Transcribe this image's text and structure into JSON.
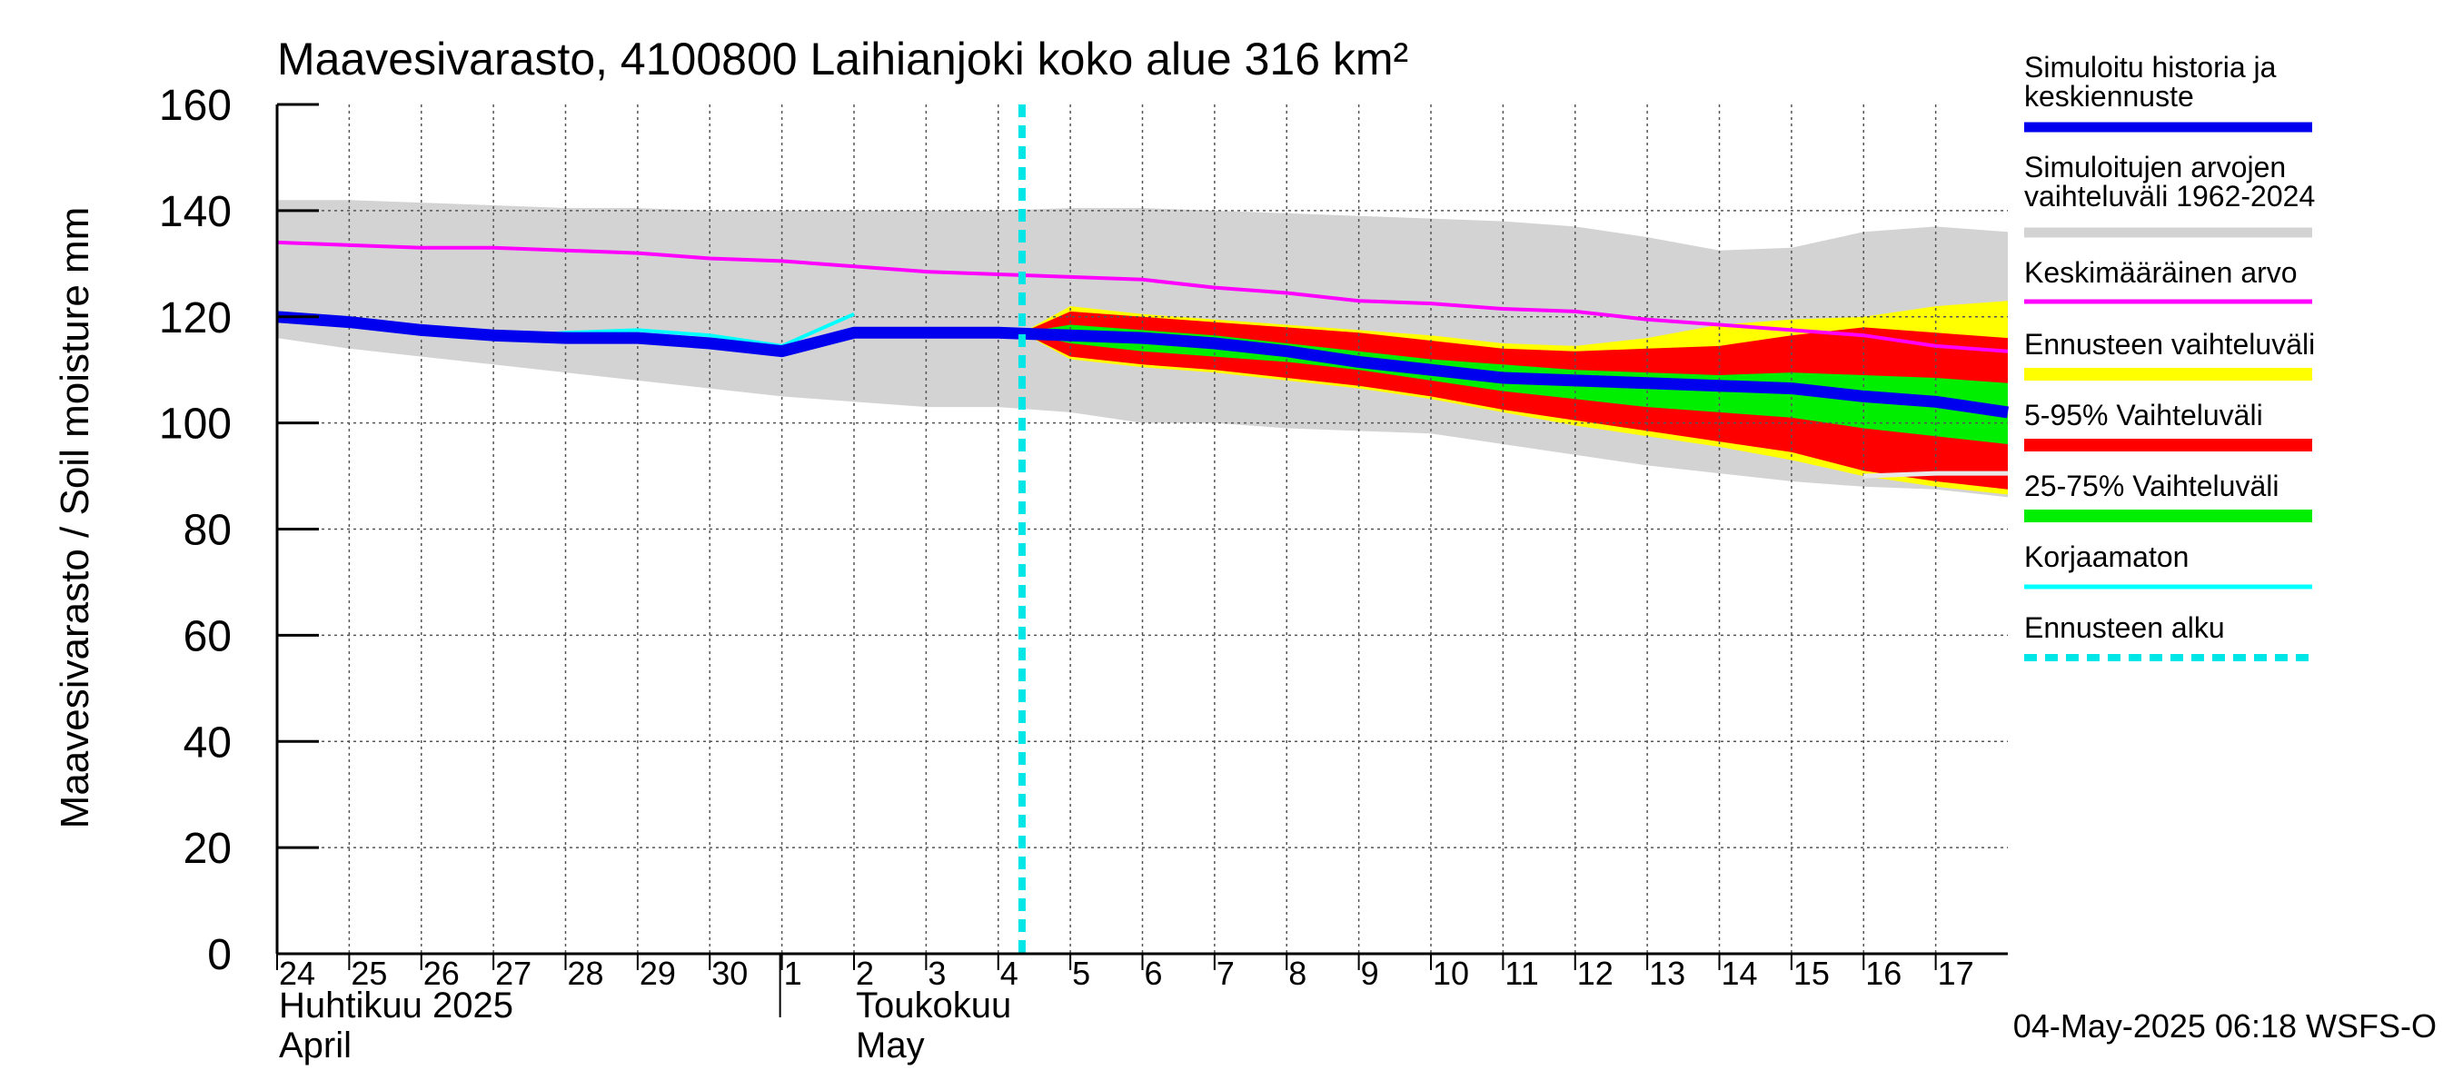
{
  "chart_data": {
    "type": "area",
    "title": "Maavesivarasto, 4100800 Laihianjoki koko alue 316 km²",
    "ylabel": "Maavesivarasto / Soil moisture   mm",
    "ylim": [
      0,
      160
    ],
    "yticks": [
      0,
      20,
      40,
      60,
      80,
      100,
      120,
      140,
      160
    ],
    "xlim": [
      0,
      24
    ],
    "grid": true,
    "forecast_start": 10.33,
    "x_tick_labels": [
      "24",
      "25",
      "26",
      "27",
      "28",
      "29",
      "30",
      "1",
      "2",
      "3",
      "4",
      "5",
      "6",
      "7",
      "8",
      "9",
      "10",
      "11",
      "12",
      "13",
      "14",
      "15",
      "16",
      "17"
    ],
    "month_labels": [
      {
        "x": 0,
        "line1": "Huhtikuu  2025",
        "line2": "April"
      },
      {
        "x": 8,
        "line1": "Toukokuu",
        "line2": "May"
      }
    ],
    "month_separator_x": 7.0,
    "timestamp": "04-May-2025 06:18 WSFS-O",
    "colors": {
      "sim_range": "#d3d3d3",
      "forecast_range": "#ffff00",
      "p5_95": "#ff0000",
      "p25_75": "#00ee00",
      "median": "#0000ee",
      "mean": "#ff00ff",
      "uncorrected": "#00ffff",
      "forecast_start": "#00e5e5",
      "uncorrected_tail": "#e8e8e8"
    },
    "legend": [
      {
        "label": "Simuloitu historia ja",
        "label2": "keskiennuste",
        "key": "median"
      },
      {
        "label": "Simuloitujen arvojen",
        "label2": "vaihteluväli 1962-2024",
        "key": "sim_range"
      },
      {
        "label": "Keskimääräinen arvo",
        "key": "mean"
      },
      {
        "label": "Ennusteen vaihteluväli",
        "key": "forecast_range"
      },
      {
        "label": "5-95% Vaihteluväli",
        "key": "p5_95"
      },
      {
        "label": "25-75% Vaihteluväli",
        "key": "p25_75"
      },
      {
        "label": "Korjaamaton",
        "key": "uncorrected"
      },
      {
        "label": "Ennusteen alku",
        "key": "forecast_start"
      }
    ],
    "sim_range": {
      "x": [
        0,
        1,
        2,
        3,
        4,
        5,
        6,
        7,
        8,
        9,
        10,
        11,
        12,
        13,
        14,
        15,
        16,
        17,
        18,
        19,
        20,
        21,
        22,
        23,
        24
      ],
      "upper": [
        142,
        142,
        141.5,
        141,
        140.5,
        140.5,
        140,
        140,
        140,
        140,
        140,
        140.5,
        140.5,
        140,
        139.5,
        139,
        138.5,
        138,
        137,
        135,
        132.5,
        133,
        136,
        137,
        136
      ],
      "lower": [
        116,
        114,
        112.5,
        111,
        109.5,
        108,
        106.5,
        105,
        104,
        103,
        103,
        102,
        100,
        100,
        99,
        98.5,
        98,
        96,
        94,
        92,
        90.5,
        89,
        88,
        87.5,
        86
      ]
    },
    "mean": {
      "x": [
        0,
        1,
        2,
        3,
        4,
        5,
        6,
        7,
        8,
        9,
        10,
        11,
        12,
        13,
        14,
        15,
        16,
        17,
        18,
        19,
        20,
        21,
        22,
        23,
        24
      ],
      "y": [
        134,
        133.5,
        133,
        133,
        132.5,
        132,
        131,
        130.5,
        129.5,
        128.5,
        128,
        127.5,
        127,
        125.5,
        124.5,
        123,
        122.5,
        121.5,
        121,
        119.5,
        118.5,
        117.5,
        116.5,
        114.5,
        113.5
      ]
    },
    "uncorrected": {
      "x": [
        0,
        1,
        2,
        3,
        4,
        5,
        6,
        7,
        8
      ],
      "y": [
        119.5,
        119,
        117.5,
        116,
        117,
        117.5,
        116.5,
        114.5,
        120.5
      ]
    },
    "uncorrected_tail": {
      "x": [
        22,
        23,
        24
      ],
      "y": [
        90,
        90.5,
        90.5
      ]
    },
    "median": {
      "x": [
        0,
        1,
        2,
        3,
        4,
        5,
        6,
        7,
        8,
        9,
        10,
        11,
        12,
        13,
        14,
        15,
        16,
        17,
        18,
        19,
        20,
        21,
        22,
        23,
        24
      ],
      "y": [
        120,
        119,
        117.5,
        116.5,
        116,
        116,
        115,
        113.5,
        117,
        117,
        117,
        116.5,
        116,
        115,
        113.5,
        111.5,
        110,
        108.5,
        108,
        107.5,
        107,
        106.5,
        105,
        104,
        102
      ]
    },
    "forecast_range": {
      "x": [
        10.33,
        11,
        12,
        13,
        14,
        15,
        16,
        17,
        18,
        19,
        20,
        21,
        22,
        23,
        24
      ],
      "upper": [
        117,
        122,
        120.5,
        119.5,
        118.5,
        117.5,
        116.5,
        115,
        114.5,
        116,
        118.5,
        119.5,
        120,
        122,
        123
      ],
      "lower": [
        117,
        112,
        110.5,
        109.5,
        108,
        106.5,
        104.5,
        102,
        99.5,
        97.5,
        95.5,
        93,
        90,
        88,
        86.5
      ]
    },
    "p5_95": {
      "x": [
        10.33,
        11,
        12,
        13,
        14,
        15,
        16,
        17,
        18,
        19,
        20,
        21,
        22,
        23,
        24
      ],
      "upper": [
        117,
        121,
        120,
        119,
        118,
        117,
        115.5,
        114,
        113.5,
        114,
        114.5,
        116.5,
        118,
        117,
        116
      ],
      "lower": [
        117,
        112.5,
        111,
        110,
        108.5,
        107,
        105,
        102.5,
        100.5,
        98.5,
        96.5,
        94.5,
        91,
        89,
        87.5
      ]
    },
    "p25_75": {
      "x": [
        10.33,
        11,
        12,
        13,
        14,
        15,
        16,
        17,
        18,
        19,
        20,
        21,
        22,
        23,
        24
      ],
      "upper": [
        117,
        118.5,
        117.5,
        116.5,
        115,
        113.5,
        112,
        111,
        110,
        109.5,
        109,
        109.5,
        109,
        108.5,
        107.5
      ],
      "lower": [
        117,
        115,
        113.5,
        112.5,
        111.5,
        110,
        108,
        106,
        104.5,
        103,
        102,
        101,
        99,
        97.5,
        96
      ]
    }
  }
}
